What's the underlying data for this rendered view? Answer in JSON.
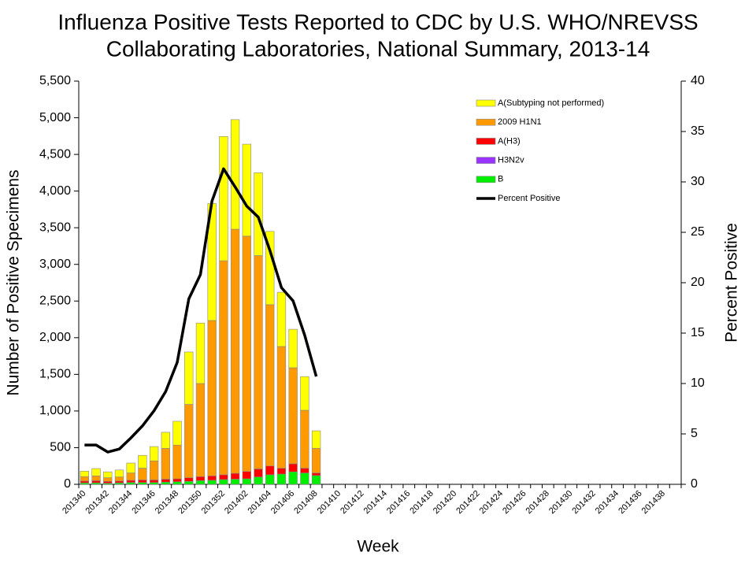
{
  "chart_data": {
    "type": "bar",
    "stacked": true,
    "title": [
      "Influenza Positive Tests Reported to CDC by U.S. WHO/NREVSS",
      "Collaborating Laboratories, National Summary, 2013-14"
    ],
    "xlabel": "Week",
    "ylabel": "Number of Positive Specimens",
    "y2label": "Percent Positive",
    "categories": [
      "201340",
      null,
      "201342",
      null,
      "201344",
      null,
      "201346",
      null,
      "201348",
      null,
      "201350",
      null,
      "201352",
      null,
      "201402",
      null,
      "201404",
      null,
      "201406",
      null,
      "201408",
      null,
      "201410",
      null,
      "201412",
      null,
      "201414",
      null,
      "201416",
      null,
      "201418",
      null,
      "201420",
      null,
      "201422",
      null,
      "201424",
      null,
      "201426",
      null,
      "201428",
      null,
      "201430",
      null,
      "201432",
      null,
      "201434",
      null,
      "201436",
      null,
      "201438",
      null
    ],
    "ylim": [
      0,
      5500
    ],
    "yticks": [
      0,
      500,
      {
        "value": 1000,
        "label": "1,000"
      },
      {
        "value": 1500,
        "label": "1,500"
      },
      {
        "value": 2000,
        "label": "2,000"
      },
      {
        "value": 2500,
        "label": "2,500"
      },
      {
        "value": 3000,
        "label": "3,000"
      },
      {
        "value": 3500,
        "label": "3,500"
      },
      {
        "value": 4000,
        "label": "4,000"
      },
      {
        "value": 4500,
        "label": "4,500"
      },
      {
        "value": 5000,
        "label": "5,000"
      },
      {
        "value": 5500,
        "label": "5,500"
      }
    ],
    "y2lim": [
      0,
      40
    ],
    "y2ticks": [
      0,
      5,
      10,
      15,
      20,
      25,
      30,
      35,
      40
    ],
    "legend": "upper right",
    "series": [
      {
        "name": "A(Subtyping not performed)",
        "color": "#ffff00",
        "values": [
          75,
          100,
          80,
          95,
          135,
          175,
          195,
          220,
          325,
          715,
          825,
          1595,
          1695,
          1495,
          1255,
          1130,
          1000,
          740,
          525,
          460,
          240,
          null,
          null,
          null,
          null,
          null,
          null,
          null,
          null,
          null,
          null,
          null,
          null,
          null,
          null,
          null,
          null,
          null,
          null,
          null,
          null,
          null,
          null,
          null,
          null,
          null,
          null,
          null,
          null,
          null,
          null,
          null
        ]
      },
      {
        "name": "2009 H1N1",
        "color": "#ff9900",
        "values": [
          60,
          65,
          50,
          55,
          100,
          160,
          260,
          420,
          460,
          1000,
          1270,
          2120,
          2920,
          3330,
          3210,
          2910,
          2200,
          1660,
          1310,
          790,
          335,
          null,
          null,
          null,
          null,
          null,
          null,
          null,
          null,
          null,
          null,
          null,
          null,
          null,
          null,
          null,
          null,
          null,
          null,
          null,
          null,
          null,
          null,
          null,
          null,
          null,
          null,
          null,
          null,
          null,
          null,
          null
        ]
      },
      {
        "name": "A(H3)",
        "color": "#ff0000",
        "values": [
          25,
          30,
          25,
          25,
          30,
          35,
          35,
          40,
          40,
          50,
          55,
          60,
          65,
          80,
          100,
          110,
          120,
          80,
          110,
          65,
          35,
          null,
          null,
          null,
          null,
          null,
          null,
          null,
          null,
          null,
          null,
          null,
          null,
          null,
          null,
          null,
          null,
          null,
          null,
          null,
          null,
          null,
          null,
          null,
          null,
          null,
          null,
          null,
          null,
          null,
          null,
          null
        ]
      },
      {
        "name": "H3N2v",
        "color": "#9933ff",
        "values": [
          0,
          0,
          0,
          0,
          0,
          0,
          0,
          0,
          0,
          0,
          0,
          0,
          0,
          0,
          0,
          0,
          0,
          0,
          0,
          0,
          0,
          null,
          null,
          null,
          null,
          null,
          null,
          null,
          null,
          null,
          null,
          null,
          null,
          null,
          null,
          null,
          null,
          null,
          null,
          null,
          null,
          null,
          null,
          null,
          null,
          null,
          null,
          null,
          null,
          null,
          null,
          null
        ]
      },
      {
        "name": "B",
        "color": "#00ee00",
        "values": [
          20,
          20,
          15,
          20,
          25,
          25,
          25,
          30,
          35,
          40,
          50,
          55,
          65,
          70,
          75,
          100,
          130,
          140,
          170,
          155,
          120,
          null,
          null,
          null,
          null,
          null,
          null,
          null,
          null,
          null,
          null,
          null,
          null,
          null,
          null,
          null,
          null,
          null,
          null,
          null,
          null,
          null,
          null,
          null,
          null,
          null,
          null,
          null,
          null,
          null,
          null,
          null
        ]
      },
      {
        "name": "Percent Positive",
        "color": "#000000",
        "type": "line",
        "axis": "y2",
        "values": [
          3.9,
          3.9,
          3.2,
          3.5,
          4.6,
          5.8,
          7.3,
          9.2,
          12.1,
          18.4,
          20.8,
          28.1,
          31.3,
          29.5,
          27.6,
          26.5,
          23.2,
          19.5,
          18.2,
          14.8,
          10.7,
          null,
          null,
          null,
          null,
          null,
          null,
          null,
          null,
          null,
          null,
          null,
          null,
          null,
          null,
          null,
          null,
          null,
          null,
          null,
          null,
          null,
          null,
          null,
          null,
          null,
          null,
          null,
          null,
          null,
          null,
          null
        ]
      }
    ]
  }
}
